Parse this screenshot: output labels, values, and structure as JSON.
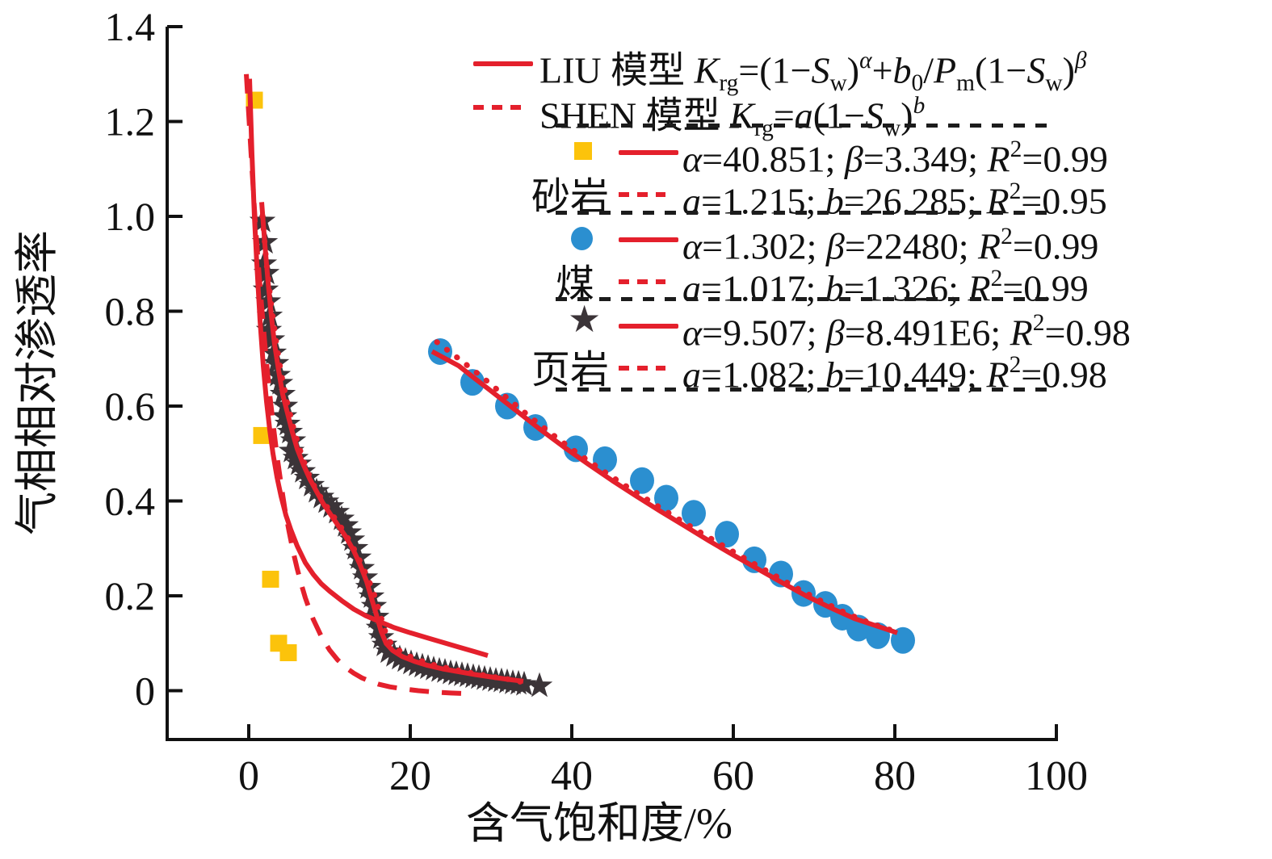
{
  "colors": {
    "red": "#e4202c",
    "yellow": "#fcc30b",
    "blue": "#2b8fd0",
    "star": "#3b3438",
    "axis": "#111111",
    "separator": "#1c1c1c"
  },
  "legend": {
    "model_rows": [
      {
        "id": "liu",
        "line": "solid",
        "eq": "LIU 模型 *K*_{rg}=(1−*S*_{w})^{*α*}+*b*_{0}/*P*_{m}(1−*S*_{w})^{*β*}"
      },
      {
        "id": "shen",
        "line": "dotted",
        "eq": "SHEN 模型 *K*_{rg}=*a*(1−*S*_{w})^{*b*}"
      }
    ],
    "groups": [
      {
        "name": "砂岩",
        "marker": "square",
        "solid_stats": "*α*=40.851; *β*=3.349; *R*^{2}=0.99",
        "dotted_stats": "*a*=1.215; *b*=26.285; *R*^{2}=0.95"
      },
      {
        "name": "煤",
        "marker": "circle",
        "solid_stats": "*α*=1.302; *β*=22480; *R*^{2}=0.99",
        "dotted_stats": "*a*=1.017; *b*=1.326; *R*^{2}=0.99"
      },
      {
        "name": "页岩",
        "marker": "star",
        "solid_stats": "*α*=9.507; *β*=8.491E6; *R*^{2}=0.98",
        "dotted_stats": "*a*=1.082; *b*=10.449; *R*^{2}=0.98"
      }
    ],
    "star_glyph": "★"
  },
  "chart_data": {
    "type": "scatter",
    "title": "",
    "xlabel": "含气饱和度/%",
    "ylabel": "气相相对渗透率",
    "xlim": [
      -10.1,
      100.2
    ],
    "ylim": [
      -0.103,
      1.4
    ],
    "grid": false,
    "legend_position": "upper right",
    "xticks": [
      {
        "v": 0,
        "label": "0"
      },
      {
        "v": 20,
        "label": "20"
      },
      {
        "v": 40,
        "label": "40"
      },
      {
        "v": 60,
        "label": "60"
      },
      {
        "v": 80,
        "label": "80"
      },
      {
        "v": 100,
        "label": "100"
      }
    ],
    "yticks": [
      {
        "v": 0,
        "label": "0"
      },
      {
        "v": 0.2,
        "label": "0.2"
      },
      {
        "v": 0.4,
        "label": "0.4"
      },
      {
        "v": 0.6,
        "label": "0.6"
      },
      {
        "v": 0.8,
        "label": "0.8"
      },
      {
        "v": 1.0,
        "label": "1.0"
      },
      {
        "v": 1.2,
        "label": "1.2"
      },
      {
        "v": 1.4,
        "label": "1.4"
      }
    ],
    "series": [
      {
        "name": "sandstone-data",
        "kind": "scatter",
        "marker": "square",
        "color": "#fcc30b",
        "points": [
          [
            0.7,
            1.245
          ],
          [
            1.6,
            0.538
          ],
          [
            2.7,
            0.235
          ],
          [
            3.7,
            0.1
          ],
          [
            4.9,
            0.08
          ]
        ]
      },
      {
        "name": "coal-data",
        "kind": "scatter",
        "marker": "circle",
        "color": "#2b8fd0",
        "points": [
          [
            23.7,
            0.715
          ],
          [
            27.7,
            0.65
          ],
          [
            32,
            0.6
          ],
          [
            35.5,
            0.555
          ],
          [
            40.5,
            0.51
          ],
          [
            44.1,
            0.487
          ],
          [
            48.7,
            0.443
          ],
          [
            51.7,
            0.406
          ],
          [
            55.1,
            0.374
          ],
          [
            59.2,
            0.33
          ],
          [
            62.6,
            0.276
          ],
          [
            65.9,
            0.246
          ],
          [
            68.7,
            0.205
          ],
          [
            71.4,
            0.182
          ],
          [
            73.5,
            0.155
          ],
          [
            75.5,
            0.132
          ],
          [
            77.9,
            0.116
          ],
          [
            81,
            0.106
          ]
        ]
      },
      {
        "name": "shale-data",
        "kind": "scatter",
        "marker": "star",
        "color": "#3b3438",
        "points": [
          [
            1.7,
            0.99
          ],
          [
            2.0,
            0.945
          ],
          [
            1.9,
            0.9
          ],
          [
            2.2,
            0.88
          ],
          [
            2.1,
            0.845
          ],
          [
            2.4,
            0.82
          ],
          [
            2.6,
            0.79
          ],
          [
            2.5,
            0.76
          ],
          [
            2.9,
            0.74
          ],
          [
            3.1,
            0.712
          ],
          [
            3.4,
            0.69
          ],
          [
            3.6,
            0.665
          ],
          [
            3.9,
            0.648
          ],
          [
            4.2,
            0.625
          ],
          [
            4.5,
            0.6
          ],
          [
            4.4,
            0.578
          ],
          [
            4.8,
            0.562
          ],
          [
            5.1,
            0.545
          ],
          [
            5.5,
            0.527
          ],
          [
            5.3,
            0.505
          ],
          [
            5.8,
            0.49
          ],
          [
            6.2,
            0.478
          ],
          [
            6.7,
            0.462
          ],
          [
            7.2,
            0.448
          ],
          [
            7.8,
            0.433
          ],
          [
            8.4,
            0.42
          ],
          [
            9.0,
            0.408
          ],
          [
            9.6,
            0.398
          ],
          [
            10.2,
            0.388
          ],
          [
            10.9,
            0.376
          ],
          [
            11.5,
            0.362
          ],
          [
            12.0,
            0.348
          ],
          [
            12.4,
            0.333
          ],
          [
            12.8,
            0.318
          ],
          [
            13.2,
            0.3
          ],
          [
            13.6,
            0.28
          ],
          [
            14.0,
            0.258
          ],
          [
            14.4,
            0.238
          ],
          [
            14.8,
            0.218
          ],
          [
            15.2,
            0.198
          ],
          [
            15.5,
            0.178
          ],
          [
            15.8,
            0.155
          ],
          [
            16.1,
            0.132
          ],
          [
            16.4,
            0.112
          ],
          [
            16.8,
            0.096
          ],
          [
            17.3,
            0.082
          ],
          [
            18.0,
            0.074
          ],
          [
            18.7,
            0.068
          ],
          [
            19.4,
            0.063
          ],
          [
            20.1,
            0.058
          ],
          [
            20.8,
            0.054
          ],
          [
            21.5,
            0.051
          ],
          [
            22.2,
            0.048
          ],
          [
            22.9,
            0.045
          ],
          [
            23.6,
            0.042
          ],
          [
            24.3,
            0.04
          ],
          [
            25.0,
            0.037
          ],
          [
            25.7,
            0.035
          ],
          [
            26.4,
            0.033
          ],
          [
            27.1,
            0.031
          ],
          [
            27.8,
            0.029
          ],
          [
            28.5,
            0.027
          ],
          [
            29.2,
            0.025
          ],
          [
            29.9,
            0.023
          ],
          [
            30.6,
            0.021
          ],
          [
            31.3,
            0.02
          ],
          [
            32.0,
            0.018
          ],
          [
            32.7,
            0.016
          ],
          [
            33.4,
            0.015
          ],
          [
            34.1,
            0.013
          ],
          [
            36.0,
            0.01
          ]
        ]
      },
      {
        "name": "shen-sandstone-fit",
        "kind": "line",
        "style": "dashed",
        "color": "#e4202c",
        "points": [
          [
            -0.3,
            1.3
          ],
          [
            0.0,
            1.215
          ],
          [
            0.4,
            1.1
          ],
          [
            0.8,
            0.99
          ],
          [
            1.2,
            0.895
          ],
          [
            1.6,
            0.81
          ],
          [
            2.0,
            0.73
          ],
          [
            2.5,
            0.64
          ],
          [
            3.0,
            0.565
          ],
          [
            3.5,
            0.495
          ],
          [
            4.0,
            0.435
          ],
          [
            4.5,
            0.38
          ],
          [
            5.0,
            0.335
          ],
          [
            5.5,
            0.293
          ],
          [
            6.0,
            0.257
          ],
          [
            6.5,
            0.225
          ],
          [
            7.0,
            0.196
          ],
          [
            7.5,
            0.172
          ],
          [
            8.0,
            0.15
          ],
          [
            9.0,
            0.114
          ],
          [
            10,
            0.086
          ],
          [
            11,
            0.065
          ],
          [
            12,
            0.049
          ],
          [
            13,
            0.037
          ],
          [
            14,
            0.027
          ],
          [
            15,
            0.02
          ],
          [
            16,
            0.014
          ],
          [
            17.5,
            0.008
          ],
          [
            19,
            0.004
          ],
          [
            21,
            0.0
          ],
          [
            23,
            -0.003
          ],
          [
            25,
            -0.005
          ],
          [
            26.5,
            -0.006
          ]
        ]
      },
      {
        "name": "shen-coal-fit",
        "kind": "line",
        "style": "dotted",
        "color": "#e4202c",
        "points": [
          [
            23.3,
            0.735
          ],
          [
            26,
            0.7
          ],
          [
            29,
            0.66
          ],
          [
            32,
            0.617
          ],
          [
            35,
            0.575
          ],
          [
            38,
            0.535
          ],
          [
            41,
            0.497
          ],
          [
            44,
            0.462
          ],
          [
            47,
            0.428
          ],
          [
            50,
            0.396
          ],
          [
            53,
            0.364
          ],
          [
            56,
            0.333
          ],
          [
            59,
            0.303
          ],
          [
            62,
            0.273
          ],
          [
            65,
            0.244
          ],
          [
            68,
            0.215
          ],
          [
            71,
            0.188
          ],
          [
            74,
            0.163
          ],
          [
            77,
            0.142
          ],
          [
            79.5,
            0.128
          ]
        ]
      },
      {
        "name": "shen-shale-fit",
        "kind": "line",
        "style": "dotted",
        "color": "#e4202c",
        "points": [
          [
            1.7,
            1.0
          ],
          [
            2.2,
            0.9
          ],
          [
            2.8,
            0.81
          ],
          [
            3.4,
            0.735
          ],
          [
            4.0,
            0.67
          ],
          [
            4.8,
            0.605
          ],
          [
            5.6,
            0.55
          ],
          [
            6.4,
            0.505
          ],
          [
            7.2,
            0.465
          ],
          [
            8.0,
            0.435
          ],
          [
            9.0,
            0.405
          ],
          [
            10,
            0.38
          ],
          [
            11,
            0.355
          ],
          [
            12,
            0.33
          ],
          [
            13,
            0.3
          ],
          [
            14,
            0.265
          ],
          [
            14.8,
            0.235
          ],
          [
            15.5,
            0.205
          ],
          [
            16.2,
            0.165
          ],
          [
            16.9,
            0.125
          ],
          [
            17.6,
            0.1
          ],
          [
            18.5,
            0.086
          ],
          [
            20,
            0.072
          ],
          [
            21.5,
            0.062
          ],
          [
            23,
            0.054
          ],
          [
            25,
            0.046
          ],
          [
            27,
            0.039
          ],
          [
            29,
            0.033
          ],
          [
            31,
            0.027
          ],
          [
            33,
            0.022
          ],
          [
            33.8,
            0.018
          ]
        ]
      },
      {
        "name": "liu-sandstone-fit",
        "kind": "line",
        "style": "solid",
        "color": "#e4202c",
        "points": [
          [
            0.1,
            1.29
          ],
          [
            0.4,
            1.13
          ],
          [
            0.7,
            1.0
          ],
          [
            1.0,
            0.9
          ],
          [
            1.4,
            0.78
          ],
          [
            1.8,
            0.685
          ],
          [
            2.2,
            0.61
          ],
          [
            2.6,
            0.55
          ],
          [
            3.0,
            0.5
          ],
          [
            3.5,
            0.45
          ],
          [
            4.0,
            0.41
          ],
          [
            4.6,
            0.37
          ],
          [
            5.2,
            0.34
          ],
          [
            6.0,
            0.305
          ],
          [
            7.0,
            0.27
          ],
          [
            8.0,
            0.245
          ],
          [
            9.0,
            0.225
          ],
          [
            10,
            0.21
          ],
          [
            11.5,
            0.19
          ],
          [
            13,
            0.172
          ],
          [
            14.5,
            0.158
          ],
          [
            16,
            0.147
          ],
          [
            18,
            0.133
          ],
          [
            20,
            0.122
          ],
          [
            22,
            0.112
          ],
          [
            24,
            0.102
          ],
          [
            26,
            0.092
          ],
          [
            28,
            0.082
          ],
          [
            29.6,
            0.074
          ]
        ]
      },
      {
        "name": "liu-shale-fit",
        "kind": "line",
        "style": "solid",
        "color": "#e4202c",
        "points": [
          [
            1.6,
            1.03
          ],
          [
            2.0,
            0.94
          ],
          [
            2.4,
            0.86
          ],
          [
            2.8,
            0.79
          ],
          [
            3.2,
            0.73
          ],
          [
            3.7,
            0.675
          ],
          [
            4.2,
            0.625
          ],
          [
            4.8,
            0.585
          ],
          [
            5.4,
            0.545
          ],
          [
            6.0,
            0.51
          ],
          [
            6.8,
            0.475
          ],
          [
            7.6,
            0.445
          ],
          [
            8.4,
            0.42
          ],
          [
            9.2,
            0.395
          ],
          [
            10,
            0.375
          ],
          [
            11,
            0.35
          ],
          [
            12,
            0.325
          ],
          [
            13,
            0.295
          ],
          [
            13.8,
            0.265
          ],
          [
            14.6,
            0.23
          ],
          [
            15.2,
            0.195
          ],
          [
            15.8,
            0.16
          ],
          [
            16.4,
            0.125
          ],
          [
            17,
            0.1
          ],
          [
            17.8,
            0.085
          ],
          [
            19,
            0.072
          ],
          [
            20.5,
            0.062
          ],
          [
            22,
            0.054
          ],
          [
            24,
            0.046
          ],
          [
            26,
            0.04
          ],
          [
            28,
            0.034
          ],
          [
            30,
            0.029
          ],
          [
            32,
            0.024
          ],
          [
            34,
            0.02
          ]
        ]
      },
      {
        "name": "liu-coal-fit",
        "kind": "line",
        "style": "solid",
        "color": "#e4202c",
        "points": [
          [
            22.7,
            0.715
          ],
          [
            26,
            0.685
          ],
          [
            28,
            0.658
          ],
          [
            30,
            0.632
          ],
          [
            33,
            0.592
          ],
          [
            36,
            0.552
          ],
          [
            39,
            0.514
          ],
          [
            42,
            0.478
          ],
          [
            45,
            0.443
          ],
          [
            48,
            0.41
          ],
          [
            51,
            0.378
          ],
          [
            54,
            0.347
          ],
          [
            57,
            0.316
          ],
          [
            60,
            0.286
          ],
          [
            63,
            0.257
          ],
          [
            66,
            0.228
          ],
          [
            69,
            0.2
          ],
          [
            72,
            0.175
          ],
          [
            75,
            0.152
          ],
          [
            78,
            0.135
          ],
          [
            80.3,
            0.122
          ]
        ]
      }
    ]
  }
}
